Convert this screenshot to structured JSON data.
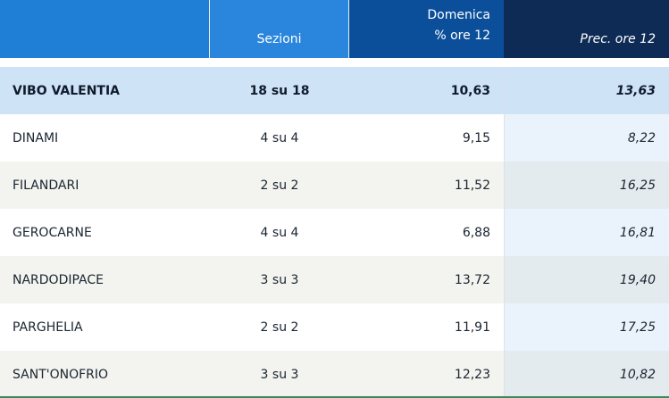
{
  "header": {
    "col_name": "",
    "col_sezioni": "Sezioni",
    "col_domenica_line1": "Domenica",
    "col_domenica_line2": "% ore 12",
    "col_prec": "Prec. ore 12"
  },
  "total": {
    "name": "VIBO VALENTIA",
    "sezioni": "18 su 18",
    "domenica": "10,63",
    "prec": "13,63"
  },
  "rows": [
    {
      "name": "DINAMI",
      "sezioni": "4 su 4",
      "domenica": "9,15",
      "prec": "8,22"
    },
    {
      "name": "FILANDARI",
      "sezioni": "2 su 2",
      "domenica": "11,52",
      "prec": "16,25"
    },
    {
      "name": "GEROCARNE",
      "sezioni": "4 su 4",
      "domenica": "6,88",
      "prec": "16,81"
    },
    {
      "name": "NARDODIPACE",
      "sezioni": "3 su 3",
      "domenica": "13,72",
      "prec": "19,40"
    },
    {
      "name": "PARGHELIA",
      "sezioni": "2 su 2",
      "domenica": "11,91",
      "prec": "17,25"
    },
    {
      "name": "SANT'ONOFRIO",
      "sezioni": "3 su 3",
      "domenica": "12,23",
      "prec": "10,82"
    }
  ],
  "colors": {
    "header_name": "#1f7fd6",
    "header_sezioni": "#2a86dc",
    "header_domenica": "#0b4f9a",
    "header_prec": "#0e2b55",
    "total_row": "#cfe3f7",
    "accent_bottom": "#3a8a5a"
  }
}
